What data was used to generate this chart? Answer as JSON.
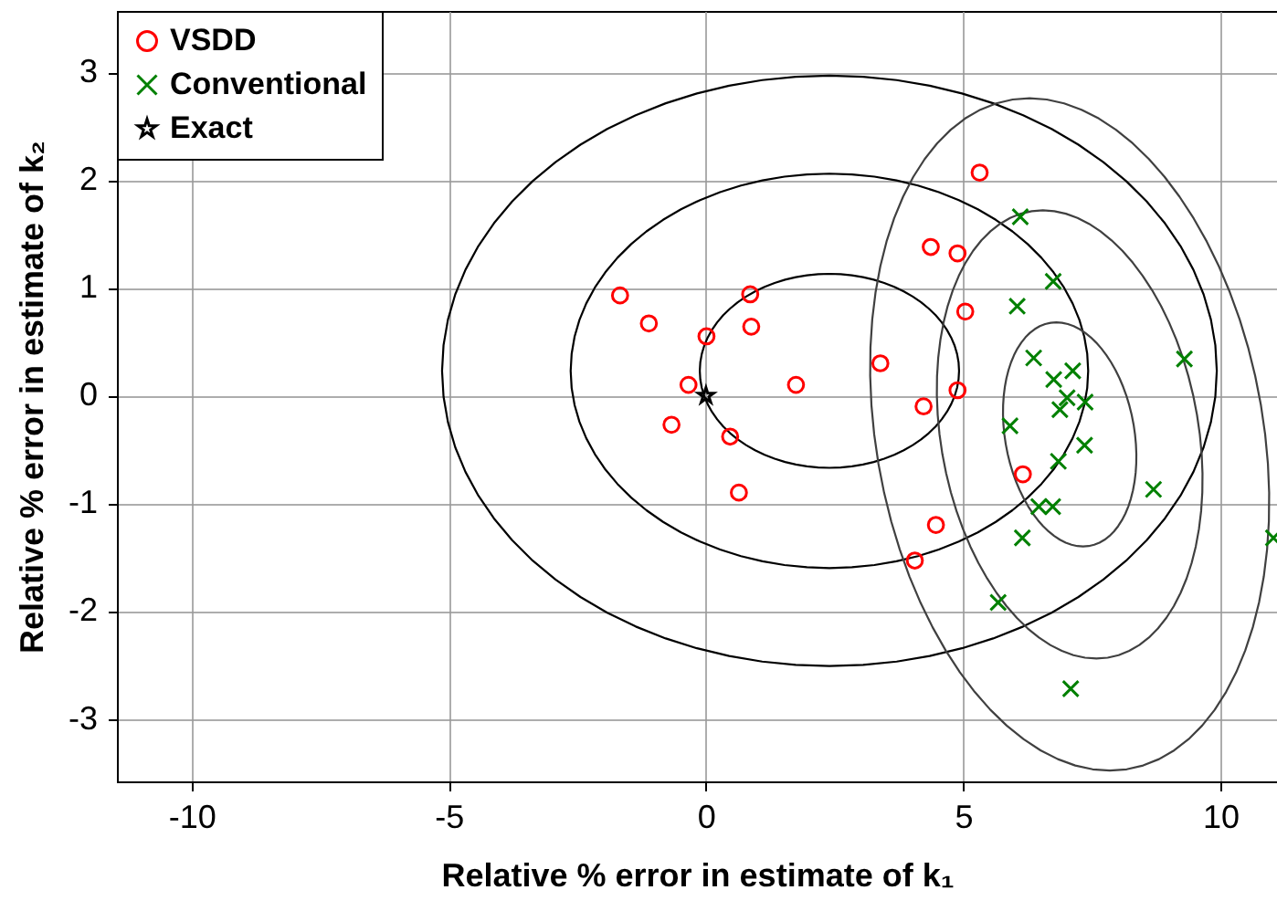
{
  "chart_data": {
    "type": "scatter",
    "xlabel": "Relative % error in estimate of k₁",
    "ylabel": "Relative % error in estimate of k₂",
    "xlim": [
      -11.45,
      11.1
    ],
    "ylim": [
      -3.58,
      3.57
    ],
    "xticks": [
      -10,
      -5,
      0,
      5,
      10
    ],
    "yticks": [
      -3,
      -2,
      -1,
      0,
      1,
      2,
      3
    ],
    "grid": true,
    "legend": "top left",
    "series": [
      {
        "name": "VSDD",
        "marker": "circle",
        "color": "#ff0000",
        "x": [
          -1.67,
          -1.11,
          0.01,
          0.86,
          0.88,
          -0.34,
          1.75,
          -0.67,
          0.47,
          0.64,
          5.32,
          4.37,
          4.89,
          5.04,
          3.39,
          4.89,
          4.23,
          6.16,
          4.47,
          4.06
        ],
        "values": [
          0.93,
          0.67,
          0.55,
          0.94,
          0.64,
          0.1,
          0.1,
          -0.27,
          -0.38,
          -0.9,
          2.07,
          1.38,
          1.32,
          0.78,
          0.3,
          0.05,
          -0.1,
          -0.73,
          -1.2,
          -1.53
        ]
      },
      {
        "name": "Conventional",
        "marker": "cross",
        "color": "#008000",
        "x": [
          6.11,
          6.75,
          6.05,
          9.3,
          6.37,
          6.76,
          7.13,
          7.02,
          7.37,
          6.88,
          5.91,
          7.36,
          6.85,
          8.7,
          6.47,
          6.74,
          6.15,
          5.68,
          7.09,
          11.03
        ],
        "values": [
          1.66,
          1.06,
          0.83,
          0.34,
          0.35,
          0.15,
          0.23,
          -0.02,
          -0.06,
          -0.13,
          -0.28,
          -0.46,
          -0.61,
          -0.87,
          -1.03,
          -1.03,
          -1.32,
          -1.92,
          -2.72,
          -1.32
        ]
      },
      {
        "name": "Exact",
        "marker": "star",
        "color": "#000000",
        "x": [
          0
        ],
        "values": [
          0
        ]
      }
    ]
  }
}
